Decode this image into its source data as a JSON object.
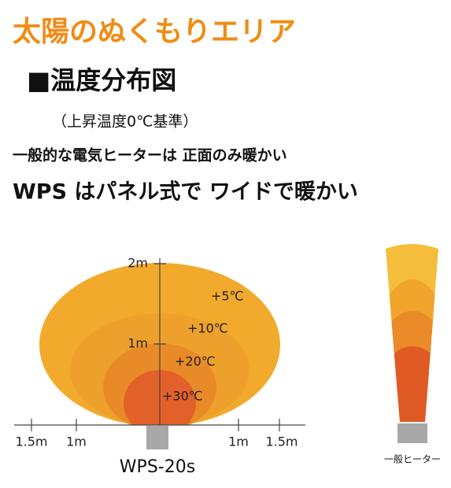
{
  "header": {
    "title": "太陽のぬくもりエリア",
    "subtitle": "■温度分布図",
    "note": "（上昇温度0℃基準）"
  },
  "lead": {
    "line1": "一般的な電気ヒーターは 正面のみ暖かい",
    "line2": "WPS はパネル式で ワイドで暖かい"
  },
  "diagram": {
    "vertical_labels": [
      "2m",
      "1m"
    ],
    "horizontal_labels": [
      "1.5m",
      "1m",
      "1m",
      "1.5m"
    ],
    "zones": [
      "+5℃",
      "+10℃",
      "+20℃",
      "+30℃"
    ],
    "model": "WPS-20s",
    "comparison": "一般ヒーター"
  }
}
